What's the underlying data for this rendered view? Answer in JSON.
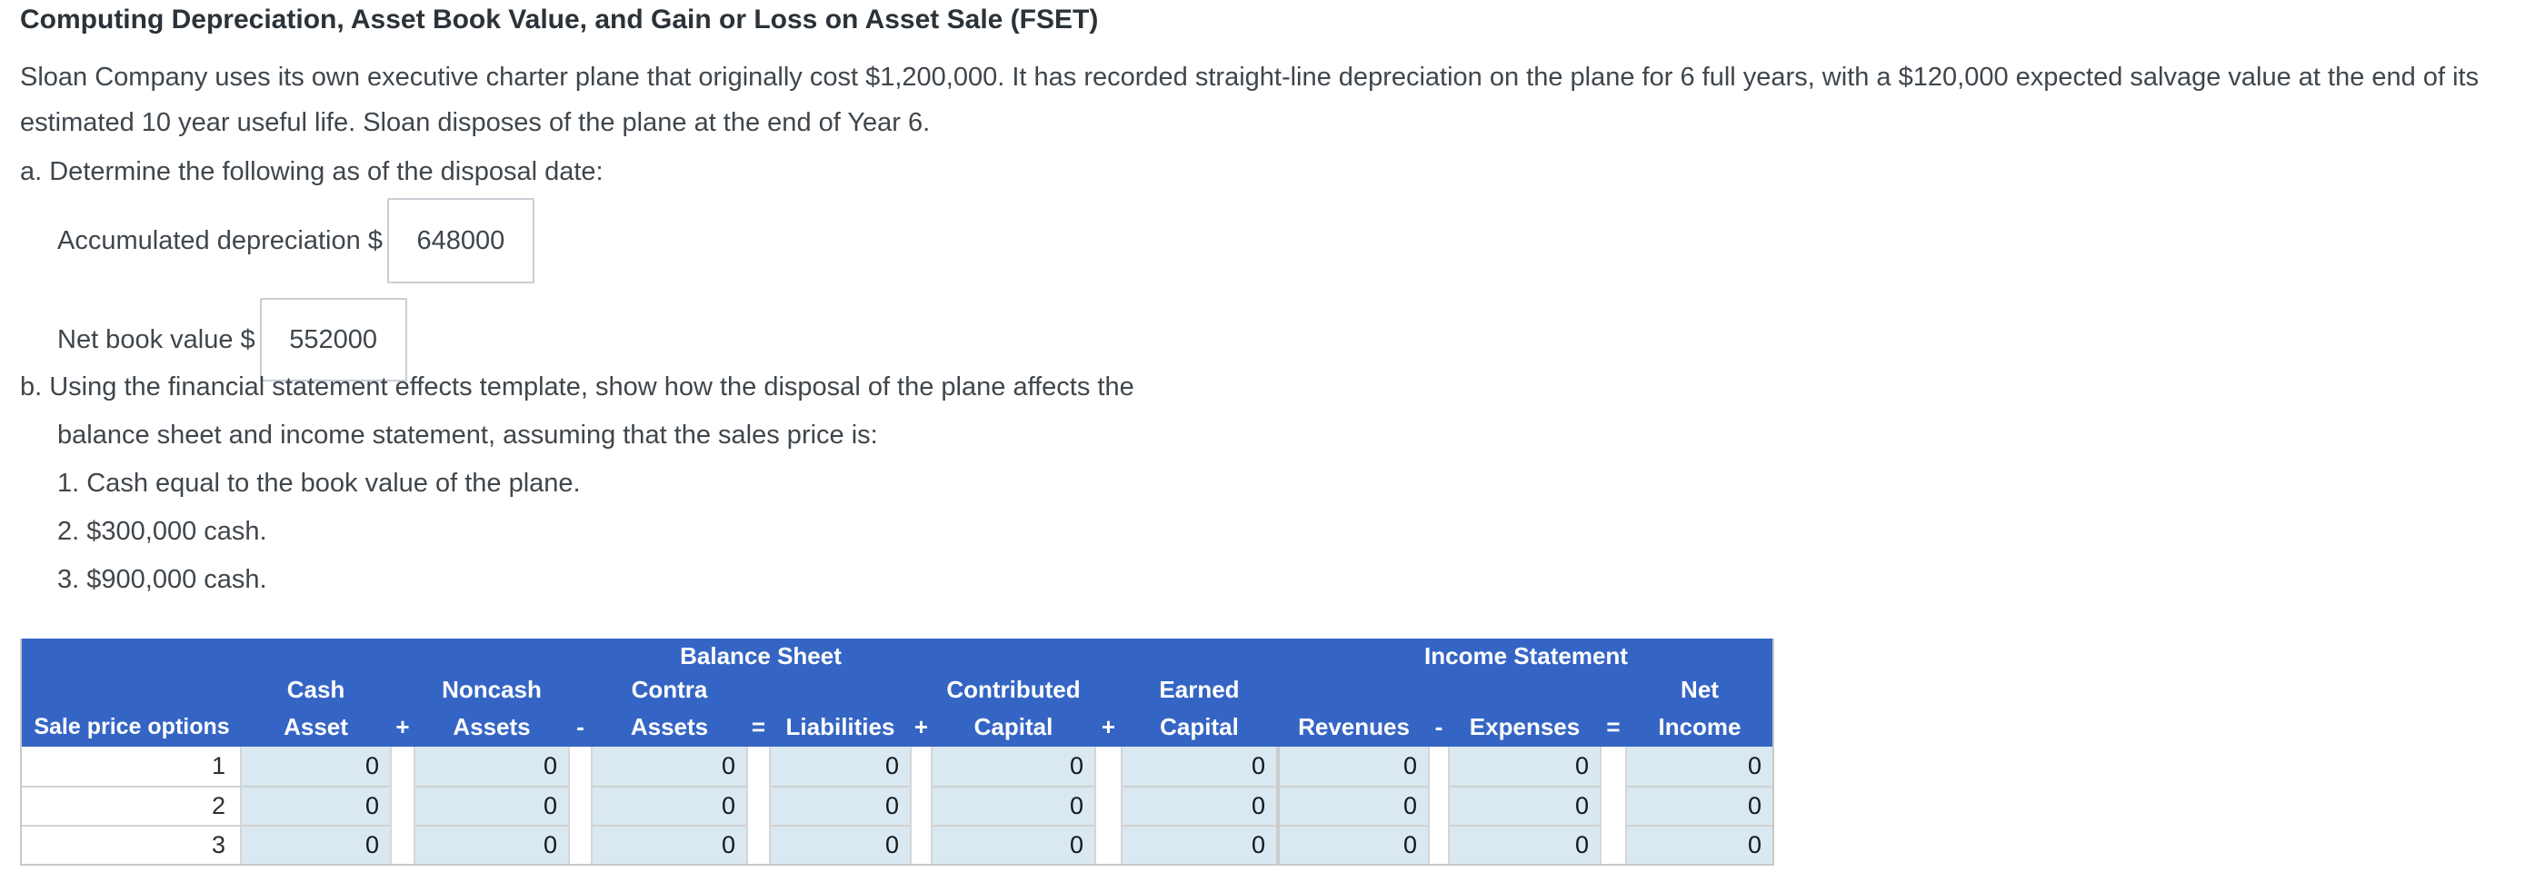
{
  "colors": {
    "header_blue": "#3565c4",
    "cell_blue": "#d9e8f1"
  },
  "page": {
    "title": "Computing Depreciation, Asset Book Value, and Gain or Loss on Asset Sale (FSET)",
    "intro": "Sloan Company uses its own executive charter plane that originally cost $1,200,000. It has recorded straight-line depreciation on the plane for 6 full years, with a $120,000 expected salvage value at the end of its estimated 10 year useful life. Sloan disposes of the plane at the end of Year 6."
  },
  "part_a": {
    "heading": "a. Determine the following as of the disposal date:",
    "fields": [
      {
        "label": "Accumulated depreciation $",
        "value": "648000"
      },
      {
        "label": "Net book value $",
        "value": "552000"
      }
    ]
  },
  "part_b": {
    "heading_line1": "b. Using the financial statement effects template, show how the disposal of the plane affects the",
    "heading_line2": "balance sheet and income statement, assuming that the sales price is:",
    "items": [
      "1. Cash equal to the book value of the plane.",
      "2. $300,000 cash.",
      "3. $900,000 cash."
    ]
  },
  "table": {
    "balance_sheet_label": "Balance Sheet",
    "income_statement_label": "Income Statement",
    "col_headers": [
      {
        "top": "",
        "bottom": "Sale price options"
      },
      {
        "top": "Cash",
        "bottom": "Asset"
      },
      {
        "top": "",
        "bottom": "+"
      },
      {
        "top": "Noncash",
        "bottom": "Assets"
      },
      {
        "top": "",
        "bottom": "-"
      },
      {
        "top": "Contra",
        "bottom": "Assets"
      },
      {
        "top": "",
        "bottom": "="
      },
      {
        "top": "",
        "bottom": "Liabilities"
      },
      {
        "top": "",
        "bottom": "+"
      },
      {
        "top": "Contributed",
        "bottom": "Capital"
      },
      {
        "top": "",
        "bottom": "+"
      },
      {
        "top": "Earned",
        "bottom": "Capital"
      },
      {
        "top": "",
        "bottom": ""
      },
      {
        "top": "",
        "bottom": "Revenues"
      },
      {
        "top": "",
        "bottom": "-"
      },
      {
        "top": "",
        "bottom": "Expenses"
      },
      {
        "top": "",
        "bottom": "="
      },
      {
        "top": "Net",
        "bottom": "Income"
      }
    ],
    "rows": [
      {
        "option": "1",
        "values": [
          "0",
          "0",
          "0",
          "0",
          "0",
          "0",
          "0",
          "0",
          "0"
        ]
      },
      {
        "option": "2",
        "values": [
          "0",
          "0",
          "0",
          "0",
          "0",
          "0",
          "0",
          "0",
          "0"
        ]
      },
      {
        "option": "3",
        "values": [
          "0",
          "0",
          "0",
          "0",
          "0",
          "0",
          "0",
          "0",
          "0"
        ]
      }
    ]
  }
}
